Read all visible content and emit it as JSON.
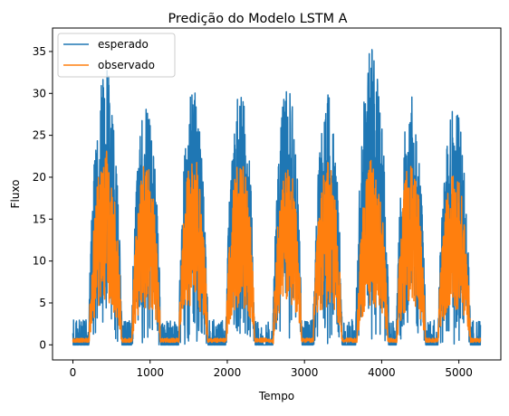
{
  "chart_data": {
    "type": "line",
    "title": "Predição do Modelo LSTM A",
    "xlabel": "Tempo",
    "ylabel": "Fluxo",
    "xlim": [
      -264,
      5544
    ],
    "ylim": [
      -1.8,
      37.8
    ],
    "xticks": [
      0,
      1000,
      2000,
      3000,
      4000,
      5000
    ],
    "yticks": [
      0,
      5,
      10,
      15,
      20,
      25,
      30,
      35
    ],
    "xtick_labels": [
      "0",
      "1000",
      "2000",
      "3000",
      "4000",
      "5000"
    ],
    "ytick_labels": [
      "0",
      "5",
      "10",
      "15",
      "20",
      "25",
      "30",
      "35"
    ],
    "grid": false,
    "legend_position": "top-left",
    "series": [
      {
        "name": "esperado",
        "color": "#1f77b4",
        "x_range": [
          0,
          5280
        ],
        "day_peaks": [
          {
            "center": 420,
            "peak": 33,
            "width": 430
          },
          {
            "center": 950,
            "peak": 29,
            "width": 380
          },
          {
            "center": 1560,
            "peak": 31,
            "width": 380
          },
          {
            "center": 2170,
            "peak": 31,
            "width": 380
          },
          {
            "center": 2780,
            "peak": 31,
            "width": 380
          },
          {
            "center": 3300,
            "peak": 30,
            "width": 380
          },
          {
            "center": 3880,
            "peak": 36,
            "width": 430
          },
          {
            "center": 4380,
            "peak": 30,
            "width": 380
          },
          {
            "center": 4940,
            "peak": 29,
            "width": 420
          }
        ]
      },
      {
        "name": "observado",
        "color": "#ff7f0e",
        "x_range": [
          0,
          5280
        ],
        "day_peaks": [
          {
            "center": 420,
            "peak": 23.5,
            "width": 420
          },
          {
            "center": 950,
            "peak": 22,
            "width": 370
          },
          {
            "center": 1560,
            "peak": 23,
            "width": 370
          },
          {
            "center": 2170,
            "peak": 23,
            "width": 370
          },
          {
            "center": 2780,
            "peak": 22,
            "width": 370
          },
          {
            "center": 3300,
            "peak": 22,
            "width": 370
          },
          {
            "center": 3880,
            "peak": 22.5,
            "width": 400
          },
          {
            "center": 4380,
            "peak": 22.5,
            "width": 370
          },
          {
            "center": 4940,
            "peak": 21,
            "width": 420
          }
        ]
      }
    ]
  }
}
